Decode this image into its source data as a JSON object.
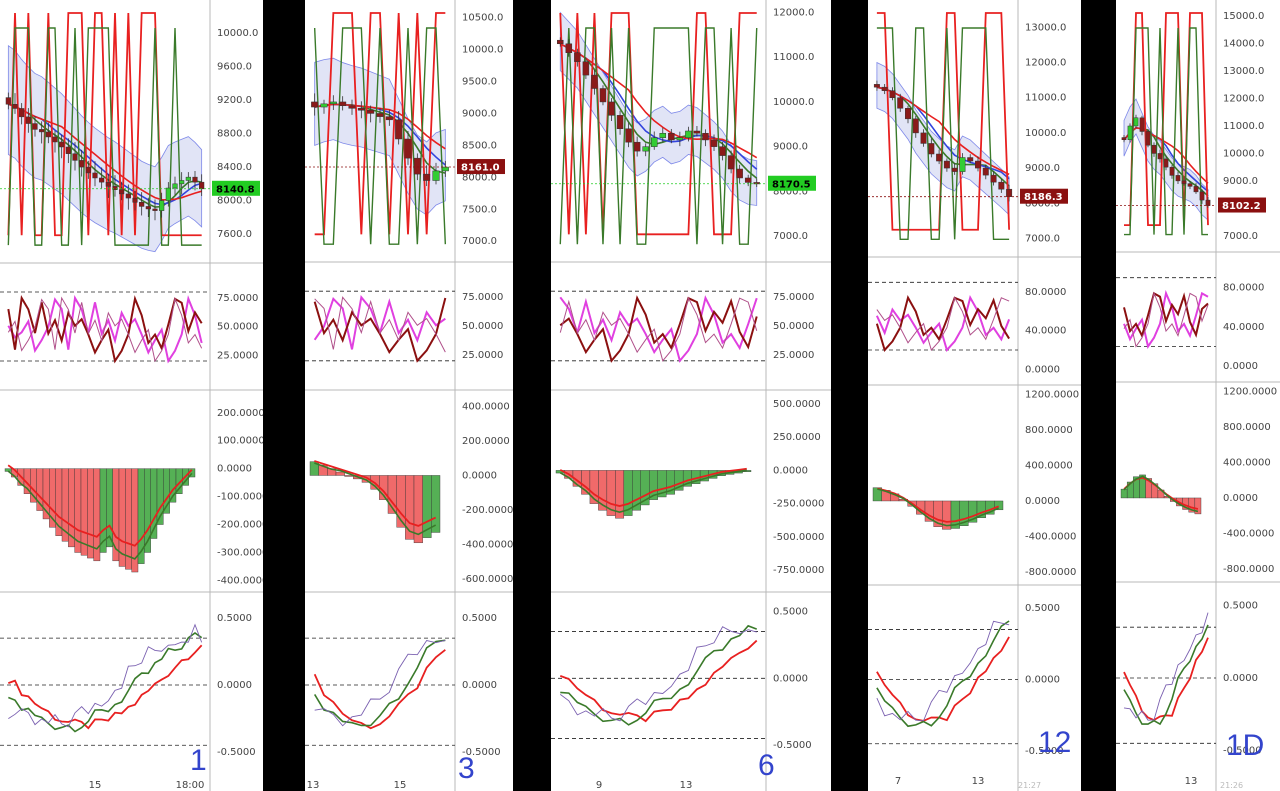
{
  "chart_data": [
    {
      "type": "candlestick",
      "annotation": "1",
      "x_ticks": [
        "15",
        "18:00"
      ],
      "price_axis": [
        "10000.0",
        "9600.0",
        "9200.0",
        "8800.0",
        "8400.0",
        "8000.0",
        "7600.0"
      ],
      "price_range": [
        7350,
        10300
      ],
      "last_price": "8140.8",
      "last_price_color": "#22cc22",
      "close_series": [
        9150,
        9100,
        9000,
        8920,
        8850,
        8820,
        8760,
        8700,
        8640,
        8560,
        8480,
        8400,
        8330,
        8270,
        8220,
        8170,
        8130,
        8080,
        8030,
        7980,
        7930,
        7900,
        7880,
        8000,
        8150,
        8200,
        8240,
        8280,
        8220,
        8140
      ],
      "rsi_axis": [
        "75.0000",
        "50.0000",
        "25.0000"
      ],
      "rsi_range": [
        0,
        100
      ],
      "macd_axis": [
        "200.0000",
        "100.0000",
        "0.0000",
        "-100.0000",
        "-200.0000",
        "-300.0000",
        "-400.0000"
      ],
      "macd_range": [
        -420,
        260
      ],
      "macd_hist": [
        -10,
        -30,
        -60,
        -90,
        -120,
        -150,
        -180,
        -210,
        -240,
        -260,
        -280,
        -300,
        -310,
        -320,
        -330,
        -300,
        -280,
        -330,
        -350,
        -360,
        -370,
        -340,
        -300,
        -250,
        -200,
        -160,
        -120,
        -90,
        -60,
        -30
      ],
      "osc_axis": [
        "0.5000",
        "0.0000",
        "-0.5000"
      ],
      "osc_range": [
        -0.65,
        0.65
      ]
    },
    {
      "type": "candlestick",
      "annotation": "3",
      "x_ticks": [
        "13",
        "15"
      ],
      "price_axis": [
        "10500.0",
        "10000.0",
        "9500.0",
        "9000.0",
        "8500.0",
        "8000.0",
        "7500.0",
        "7000.0"
      ],
      "price_range": [
        6800,
        10650
      ],
      "last_price": "8161.0",
      "last_price_color": "#8b1010",
      "close_series": [
        9100,
        9150,
        9180,
        9120,
        9080,
        9050,
        9000,
        8950,
        8900,
        8600,
        8300,
        8050,
        7950,
        8100,
        8161
      ],
      "rsi_axis": [
        "75.0000",
        "50.0000",
        "25.0000"
      ],
      "rsi_range": [
        0,
        100
      ],
      "macd_axis": [
        "400.0000",
        "200.0000",
        "0.0000",
        "-200.0000",
        "-400.0000",
        "-600.0000"
      ],
      "macd_range": [
        -640,
        460
      ],
      "macd_hist": [
        80,
        60,
        40,
        20,
        0,
        -20,
        -40,
        -80,
        -140,
        -220,
        -300,
        -370,
        -390,
        -360,
        -330
      ],
      "osc_axis": [
        "0.5000",
        "0.0000",
        "-0.5000"
      ],
      "osc_range": [
        -0.65,
        0.65
      ]
    },
    {
      "type": "candlestick",
      "annotation": "6",
      "x_ticks": [
        "9",
        "13"
      ],
      "price_axis": [
        "12000.0",
        "11000.0",
        "10000.0",
        "9000.0",
        "8000.0",
        "7000.0"
      ],
      "price_range": [
        6600,
        12100
      ],
      "last_price": "8170.5",
      "last_price_color": "#22cc22",
      "close_series": [
        11300,
        11100,
        10900,
        10600,
        10300,
        10000,
        9700,
        9400,
        9100,
        8900,
        9000,
        9200,
        9300,
        9150,
        9200,
        9350,
        9300,
        9150,
        9000,
        8800,
        8500,
        8300,
        8200,
        8170
      ],
      "rsi_axis": [
        "75.0000",
        "50.0000",
        "25.0000"
      ],
      "rsi_range": [
        0,
        100
      ],
      "macd_axis": [
        "500.0000",
        "250.0000",
        "0.0000",
        "-250.0000",
        "-500.0000",
        "-750.0000"
      ],
      "macd_range": [
        -870,
        560
      ],
      "macd_hist": [
        -20,
        -60,
        -120,
        -180,
        -250,
        -300,
        -340,
        -360,
        -340,
        -300,
        -260,
        -220,
        -200,
        -180,
        -150,
        -120,
        -100,
        -80,
        -60,
        -40,
        -30,
        -20,
        -10
      ],
      "osc_axis": [
        "0.5000",
        "0.0000",
        "-0.5000"
      ],
      "osc_range": [
        -0.7,
        0.6
      ]
    },
    {
      "type": "candlestick",
      "annotation": "12",
      "x_ticks": [
        "7",
        "13"
      ],
      "price_axis": [
        "13000.0",
        "12000.0",
        "11000.0",
        "10000.0",
        "9000.0",
        "8000.0",
        "7000.0"
      ],
      "price_range": [
        6700,
        13550
      ],
      "last_price": "8186.3",
      "last_price_color": "#8b1010",
      "close_series": [
        11300,
        11200,
        11000,
        10700,
        10400,
        10000,
        9700,
        9400,
        9200,
        9000,
        8900,
        9300,
        9200,
        9000,
        8800,
        8600,
        8400,
        8186
      ],
      "rsi_axis": [
        "80.0000",
        "40.0000",
        "0.0000"
      ],
      "rsi_range": [
        -10,
        110
      ],
      "macd_axis": [
        "1200.0000",
        "800.0000",
        "400.0000",
        "0.0000",
        "-400.0000",
        "-800.0000"
      ],
      "macd_range": [
        -880,
        1240
      ],
      "macd_hist": [
        150,
        120,
        80,
        20,
        -60,
        -150,
        -230,
        -290,
        -320,
        -310,
        -280,
        -240,
        -190,
        -150,
        -100
      ],
      "osc_axis": [
        "0.5000",
        "0.0000",
        "-0.5000"
      ],
      "osc_range": [
        -0.62,
        0.62
      ]
    },
    {
      "type": "candlestick",
      "annotation": "1D",
      "x_ticks": [
        "13"
      ],
      "price_axis": [
        "15000.0",
        "14000.0",
        "13000.0",
        "12000.0",
        "11000.0",
        "10000.0",
        "9000.0",
        "8000.0",
        "7000.0"
      ],
      "price_range": [
        6700,
        15300
      ],
      "last_price": "8102.2",
      "last_price_color": "#8b1010",
      "close_series": [
        10500,
        11000,
        11300,
        10800,
        10300,
        10000,
        9800,
        9500,
        9200,
        9000,
        8900,
        8800,
        8600,
        8300,
        8102
      ],
      "rsi_axis": [
        "80.0000",
        "40.0000",
        "0.0000"
      ],
      "rsi_range": [
        -10,
        110
      ],
      "macd_axis": [
        "1200.0000",
        "800.0000",
        "400.0000",
        "0.0000",
        "-400.0000",
        "-800.0000"
      ],
      "macd_range": [
        -880,
        1240
      ],
      "macd_hist": [
        100,
        180,
        240,
        260,
        220,
        160,
        90,
        20,
        -40,
        -90,
        -130,
        -160,
        -180
      ],
      "osc_axis": [
        "0.5000",
        "0.0000",
        "-0.5000"
      ],
      "osc_range": [
        -0.62,
        0.62
      ]
    }
  ],
  "bottom_labels": [
    "21:27",
    "21:26"
  ],
  "colors": {
    "bear": "#8b1a1a",
    "bull": "#33cc33",
    "red_line": "#e82020",
    "green_line": "#3a7a2a",
    "blue_line": "#3344dd",
    "magenta": "#e040e0",
    "dark_red": "#8b1010",
    "annotation": "#3344cc"
  }
}
